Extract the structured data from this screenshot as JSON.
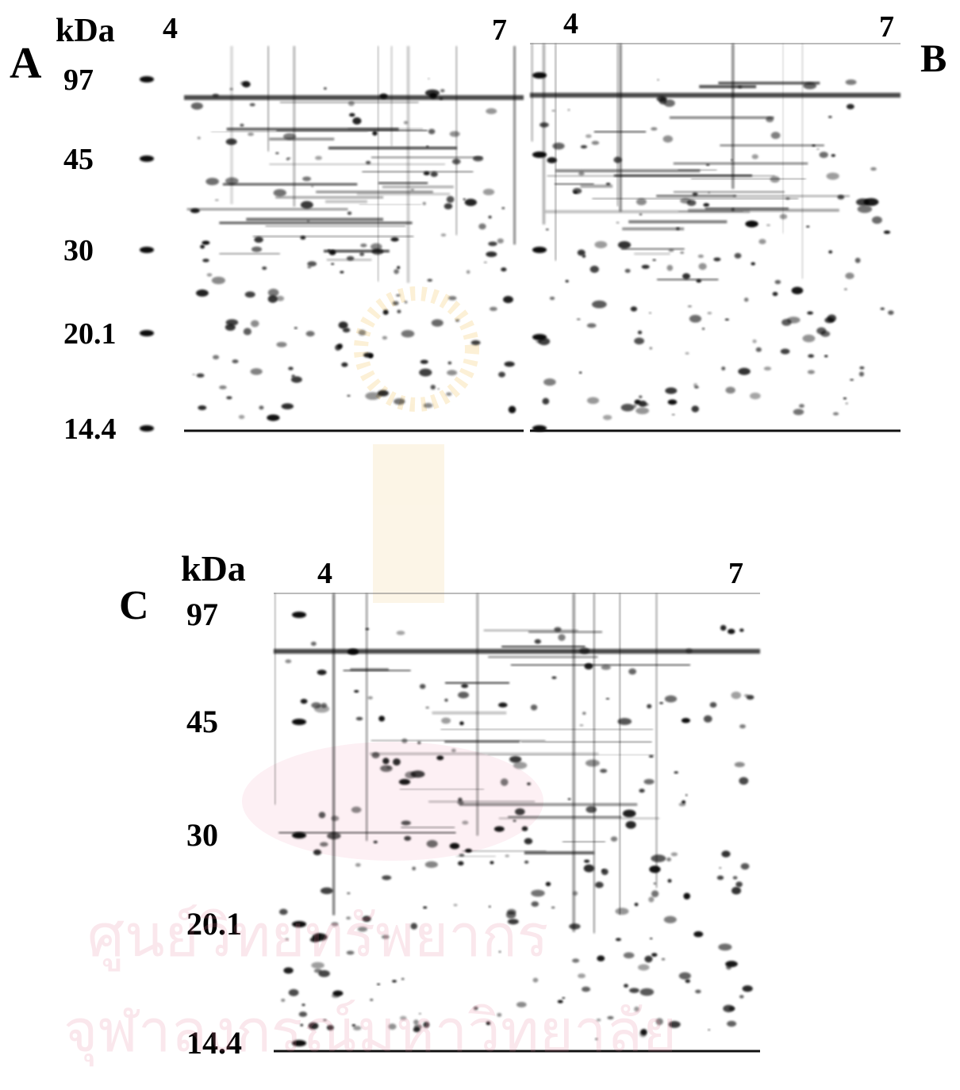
{
  "panels": [
    {
      "label": "A",
      "unit": "kDa",
      "markers": [
        "97",
        "45",
        "30",
        "20.1",
        "14.4"
      ],
      "ph_low": "4",
      "ph_high": "7"
    },
    {
      "label": "B",
      "ph_low": "4",
      "ph_high": "7"
    },
    {
      "label": "C",
      "unit": "kDa",
      "markers": [
        "97",
        "45",
        "30",
        "20.1",
        "14.4"
      ],
      "ph_low": "4",
      "ph_high": "7"
    }
  ],
  "watermark": {
    "line1": "ศูนย์วิทยทรัพยากร",
    "line2": "จุฬาลงกรณ์มหาวิทยาลัย"
  }
}
